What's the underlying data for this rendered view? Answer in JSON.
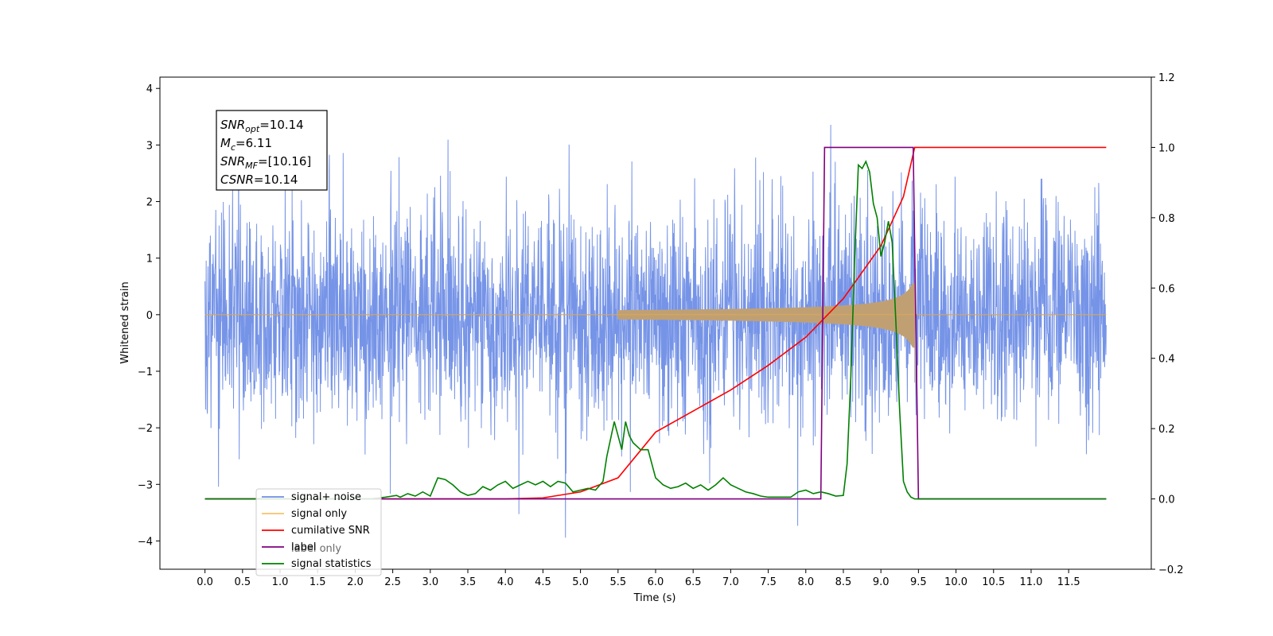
{
  "chart_data": {
    "type": "line",
    "xlabel": "Time (s)",
    "ylabel": "Whitened strain",
    "xlim": [
      -0.6,
      12.6
    ],
    "ylim": [
      -4.5,
      4.2
    ],
    "y2lim": [
      -0.2,
      1.2
    ],
    "x_ticks": [
      "0.0",
      "0.5",
      "1.0",
      "1.5",
      "2.0",
      "2.5",
      "3.0",
      "3.5",
      "4.0",
      "4.5",
      "5.0",
      "5.5",
      "6.0",
      "6.5",
      "7.0",
      "7.5",
      "8.0",
      "8.5",
      "9.0",
      "9.5",
      "10.0",
      "10.5",
      "11.0",
      "11.5"
    ],
    "y_ticks": [
      "−4",
      "−3",
      "−2",
      "−1",
      "0",
      "1",
      "2",
      "3",
      "4"
    ],
    "y2_ticks": [
      "−0.2",
      "0.0",
      "0.2",
      "0.4",
      "0.6",
      "0.8",
      "1.0",
      "1.2"
    ],
    "annotation": {
      "lines": [
        {
          "var": "SNR",
          "sub": "opt",
          "value": "=10.14"
        },
        {
          "var": "M",
          "sub": "c",
          "value": "=6.11"
        },
        {
          "var": "SNR",
          "sub": "MF",
          "value": "=[10.16]"
        },
        {
          "var": "CSNR",
          "sub": "",
          "value": "=10.14"
        }
      ]
    },
    "legend": {
      "placement": "lower-left",
      "entries": [
        {
          "label": "signal+ noise",
          "color": "#6f8ee6"
        },
        {
          "label": "signal only",
          "color": "#f5c26b"
        },
        {
          "label": "cumilative SNR",
          "color": "#ff0000"
        },
        {
          "label": "label",
          "color": "#800080"
        },
        {
          "label": "signal statistics",
          "color": "#008000"
        }
      ],
      "overlapped_text": "label only"
    },
    "series": [
      {
        "name": "signal+ noise",
        "axis": "left",
        "color": "#6f8ee6",
        "description_x_range": [
          0.0,
          12.0
        ],
        "std": 1.0
      },
      {
        "name": "signal only",
        "axis": "left",
        "color": "#f5c26b",
        "chirp_end": 9.45,
        "peak_amplitude": 0.55
      },
      {
        "name": "cumilative SNR",
        "axis": "right",
        "x": [
          0.0,
          2.0,
          4.0,
          4.5,
          5.0,
          5.5,
          6.0,
          6.5,
          7.0,
          7.5,
          8.0,
          8.5,
          9.0,
          9.3,
          9.45,
          12.0
        ],
        "y": [
          0.0,
          0.0,
          0.0,
          0.003,
          0.02,
          0.06,
          0.19,
          0.25,
          0.31,
          0.38,
          0.46,
          0.57,
          0.72,
          0.86,
          1.0,
          1.0
        ],
        "color": "#ff0000"
      },
      {
        "name": "label",
        "axis": "right",
        "x": [
          0.0,
          8.2,
          8.25,
          9.43,
          9.5,
          12.0
        ],
        "y": [
          0.0,
          0.0,
          1.0,
          1.0,
          0.0,
          0.0
        ],
        "color": "#800080"
      },
      {
        "name": "signal statistics",
        "axis": "right",
        "x": [
          0.0,
          2.2,
          2.4,
          2.55,
          2.6,
          2.7,
          2.8,
          2.9,
          3.0,
          3.1,
          3.2,
          3.3,
          3.4,
          3.5,
          3.6,
          3.7,
          3.8,
          3.9,
          4.0,
          4.1,
          4.2,
          4.3,
          4.4,
          4.5,
          4.6,
          4.7,
          4.8,
          4.9,
          5.0,
          5.1,
          5.2,
          5.3,
          5.35,
          5.45,
          5.55,
          5.6,
          5.65,
          5.7,
          5.8,
          5.9,
          6.0,
          6.05,
          6.1,
          6.2,
          6.3,
          6.4,
          6.5,
          6.6,
          6.7,
          6.8,
          6.9,
          7.0,
          7.1,
          7.2,
          7.3,
          7.4,
          7.5,
          7.6,
          7.8,
          7.9,
          8.0,
          8.1,
          8.2,
          8.3,
          8.4,
          8.5,
          8.55,
          8.6,
          8.65,
          8.7,
          8.75,
          8.8,
          8.85,
          8.9,
          8.95,
          9.0,
          9.05,
          9.1,
          9.15,
          9.2,
          9.25,
          9.3,
          9.35,
          9.4,
          9.45,
          9.5,
          9.55,
          9.6,
          9.7,
          12.0
        ],
        "y": [
          0.0,
          0.0,
          0.005,
          0.01,
          0.005,
          0.015,
          0.008,
          0.02,
          0.008,
          0.06,
          0.055,
          0.04,
          0.02,
          0.01,
          0.015,
          0.035,
          0.025,
          0.04,
          0.05,
          0.03,
          0.04,
          0.05,
          0.04,
          0.05,
          0.035,
          0.05,
          0.045,
          0.02,
          0.025,
          0.03,
          0.025,
          0.05,
          0.12,
          0.22,
          0.14,
          0.22,
          0.18,
          0.16,
          0.14,
          0.14,
          0.06,
          0.05,
          0.04,
          0.03,
          0.035,
          0.045,
          0.03,
          0.04,
          0.025,
          0.04,
          0.06,
          0.04,
          0.03,
          0.02,
          0.015,
          0.008,
          0.005,
          0.005,
          0.005,
          0.02,
          0.025,
          0.015,
          0.02,
          0.015,
          0.008,
          0.01,
          0.1,
          0.35,
          0.68,
          0.95,
          0.94,
          0.96,
          0.93,
          0.84,
          0.8,
          0.69,
          0.73,
          0.79,
          0.73,
          0.5,
          0.25,
          0.05,
          0.02,
          0.005,
          0.0,
          0.0,
          0.0,
          0.0,
          0.0,
          0.0
        ],
        "color": "#008000"
      }
    ]
  }
}
